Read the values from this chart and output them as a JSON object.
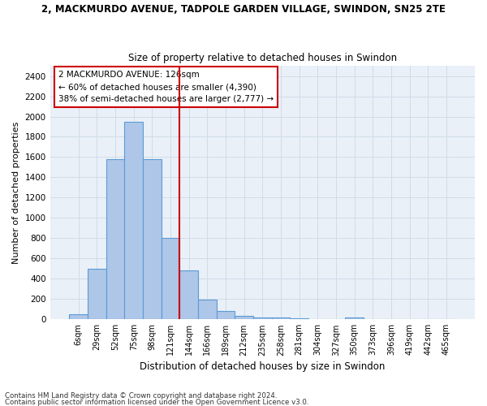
{
  "title_line1": "2, MACKMURDO AVENUE, TADPOLE GARDEN VILLAGE, SWINDON, SN25 2TE",
  "title_line2": "Size of property relative to detached houses in Swindon",
  "xlabel": "Distribution of detached houses by size in Swindon",
  "ylabel": "Number of detached properties",
  "categories": [
    "6sqm",
    "29sqm",
    "52sqm",
    "75sqm",
    "98sqm",
    "121sqm",
    "144sqm",
    "166sqm",
    "189sqm",
    "212sqm",
    "235sqm",
    "258sqm",
    "281sqm",
    "304sqm",
    "327sqm",
    "350sqm",
    "373sqm",
    "396sqm",
    "419sqm",
    "442sqm",
    "465sqm"
  ],
  "values": [
    50,
    500,
    1580,
    1950,
    1580,
    800,
    480,
    195,
    85,
    35,
    22,
    18,
    8,
    0,
    0,
    18,
    0,
    0,
    0,
    0,
    0
  ],
  "bar_color": "#aec6e8",
  "bar_edge_color": "#5b9bd5",
  "vline_bin_index": 5,
  "vline_color": "#cc0000",
  "annotation_text": "2 MACKMURDO AVENUE: 126sqm\n← 60% of detached houses are smaller (4,390)\n38% of semi-detached houses are larger (2,777) →",
  "annotation_box_color": "#cc0000",
  "ylim": [
    0,
    2500
  ],
  "yticks": [
    0,
    200,
    400,
    600,
    800,
    1000,
    1200,
    1400,
    1600,
    1800,
    2000,
    2200,
    2400
  ],
  "grid_color": "#d0dce8",
  "background_color": "#eaf0f8",
  "footer_line1": "Contains HM Land Registry data © Crown copyright and database right 2024.",
  "footer_line2": "Contains public sector information licensed under the Open Government Licence v3.0."
}
